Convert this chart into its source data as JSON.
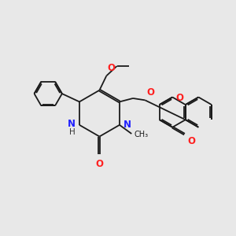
{
  "bg_color": "#e8e8e8",
  "bond_color": "#1a1a1a",
  "N_color": "#2020ff",
  "O_color": "#ff2020",
  "lw": 1.3,
  "dbgap": 0.055,
  "fig_w": 3.0,
  "fig_h": 3.0,
  "dpi": 100,
  "xlim": [
    0,
    10
  ],
  "ylim": [
    0,
    10
  ]
}
